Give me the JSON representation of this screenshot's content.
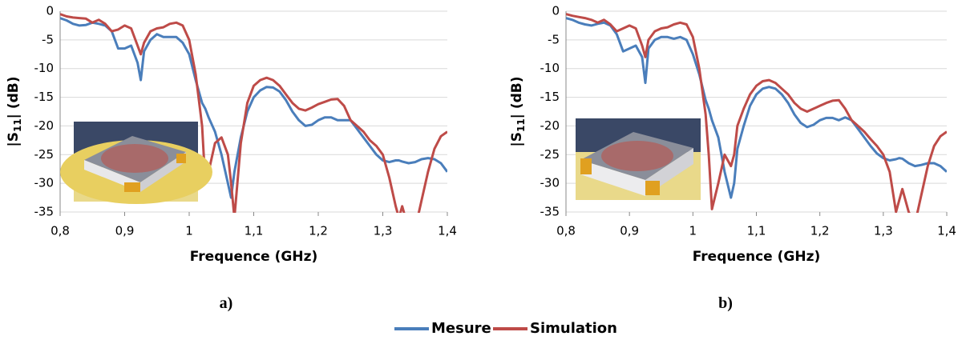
{
  "chart_data": [
    {
      "type": "line",
      "caption": "a)",
      "x_label": "Frequence (GHz)",
      "y_label": {
        "prefix": "|S",
        "subscript": "11",
        "suffix": "| (dB)"
      },
      "xlim": [
        0.8,
        1.4
      ],
      "ylim": [
        -35,
        0
      ],
      "xticks": [
        {
          "value": 0.8,
          "label": "0,8"
        },
        {
          "value": 0.9,
          "label": "0,9"
        },
        1,
        {
          "value": 1.1,
          "label": "1,1"
        },
        {
          "value": 1.2,
          "label": "1,2"
        },
        {
          "value": 1.3,
          "label": "1,3"
        },
        {
          "value": 1.4,
          "label": "1,4"
        }
      ],
      "yticks": [
        0,
        -5,
        -10,
        -15,
        -20,
        -25,
        -30,
        -35
      ],
      "grid": true,
      "x": [
        0.8,
        0.81,
        0.82,
        0.83,
        0.84,
        0.85,
        0.86,
        0.87,
        0.88,
        0.89,
        0.9,
        0.91,
        0.92,
        0.925,
        0.93,
        0.94,
        0.95,
        0.96,
        0.97,
        0.98,
        0.99,
        1,
        1.01,
        1.02,
        1.025,
        1.03,
        1.04,
        1.05,
        1.06,
        1.065,
        1.07,
        1.08,
        1.09,
        1.1,
        1.11,
        1.12,
        1.13,
        1.14,
        1.15,
        1.16,
        1.17,
        1.18,
        1.19,
        1.2,
        1.21,
        1.22,
        1.23,
        1.24,
        1.25,
        1.26,
        1.27,
        1.28,
        1.29,
        1.3,
        1.31,
        1.32,
        1.325,
        1.33,
        1.34,
        1.35,
        1.36,
        1.37,
        1.38,
        1.39,
        1.4
      ],
      "series": [
        {
          "name": "Mesure",
          "color": "#4a7ebb",
          "values": [
            -1.2,
            -1.6,
            -2.2,
            -2.5,
            -2.4,
            -2,
            -2.2,
            -2.5,
            -3.5,
            -6.5,
            -6.5,
            -6,
            -9,
            -12,
            -7,
            -5,
            -4,
            -4.5,
            -4.5,
            -4.5,
            -5.5,
            -7.5,
            -12,
            -16,
            -17,
            -18.5,
            -21,
            -25,
            -30,
            -32.5,
            -28,
            -22,
            -17.5,
            -15,
            -13.8,
            -13.2,
            -13.3,
            -14,
            -15.5,
            -17.5,
            -19,
            -20,
            -19.8,
            -19,
            -18.5,
            -18.5,
            -19,
            -19,
            -19,
            -20.5,
            -22,
            -23.5,
            -25,
            -26,
            -26.3,
            -26,
            -26,
            -26.2,
            -26.5,
            -26.3,
            -25.8,
            -25.6,
            -25.8,
            -26.5,
            -28
          ]
        },
        {
          "name": "Simulation",
          "color": "#be4b48",
          "values": [
            -0.5,
            -0.9,
            -1.1,
            -1.2,
            -1.3,
            -2,
            -1.5,
            -2.2,
            -3.5,
            -3.2,
            -2.5,
            -3,
            -6,
            -7.5,
            -5.5,
            -3.5,
            -3,
            -2.8,
            -2.2,
            -2,
            -2.5,
            -5,
            -11,
            -20,
            -30,
            -28,
            -23,
            -22,
            -25,
            -30,
            -36,
            -23,
            -16,
            -13,
            -12,
            -11.6,
            -12,
            -13,
            -14.5,
            -16,
            -17,
            -17.3,
            -16.8,
            -16.2,
            -15.8,
            -15.4,
            -15.3,
            -16.5,
            -19,
            -20,
            -21,
            -22.5,
            -23.5,
            -25,
            -29,
            -34,
            -36,
            -34,
            -38,
            -38,
            -33,
            -28,
            -24,
            -21.8,
            -21
          ]
        }
      ]
    },
    {
      "type": "line",
      "caption": "b)",
      "x_label": "Frequence (GHz)",
      "y_label": {
        "prefix": "|S",
        "subscript": "11",
        "suffix": "| (dB)"
      },
      "xlim": [
        0.8,
        1.4
      ],
      "ylim": [
        -35,
        0
      ],
      "xticks": [
        {
          "value": 0.8,
          "label": "0,8"
        },
        {
          "value": 0.9,
          "label": "0,9"
        },
        1,
        {
          "value": 1.1,
          "label": "1,1"
        },
        {
          "value": 1.2,
          "label": "1,2"
        },
        {
          "value": 1.3,
          "label": "1,3"
        },
        {
          "value": 1.4,
          "label": "1,4"
        }
      ],
      "yticks": [
        0,
        -5,
        -10,
        -15,
        -20,
        -25,
        -30,
        -35
      ],
      "grid": true,
      "x": [
        0.8,
        0.81,
        0.82,
        0.83,
        0.84,
        0.85,
        0.86,
        0.87,
        0.88,
        0.89,
        0.9,
        0.91,
        0.92,
        0.925,
        0.93,
        0.94,
        0.95,
        0.96,
        0.97,
        0.98,
        0.99,
        1,
        1.01,
        1.02,
        1.025,
        1.03,
        1.04,
        1.05,
        1.06,
        1.065,
        1.07,
        1.08,
        1.09,
        1.1,
        1.11,
        1.12,
        1.13,
        1.14,
        1.15,
        1.16,
        1.17,
        1.18,
        1.19,
        1.2,
        1.21,
        1.22,
        1.23,
        1.24,
        1.25,
        1.26,
        1.27,
        1.28,
        1.29,
        1.3,
        1.31,
        1.32,
        1.325,
        1.33,
        1.34,
        1.35,
        1.36,
        1.37,
        1.38,
        1.39,
        1.4
      ],
      "series": [
        {
          "name": "Mesure",
          "color": "#4a7ebb",
          "values": [
            -1.2,
            -1.5,
            -2,
            -2.3,
            -2.5,
            -2.2,
            -2,
            -2.5,
            -4,
            -7,
            -6.5,
            -6,
            -8,
            -12.5,
            -6.5,
            -5,
            -4.5,
            -4.5,
            -4.8,
            -4.5,
            -5,
            -7.5,
            -11,
            -15.5,
            -17,
            -19,
            -22,
            -28,
            -32.5,
            -30,
            -24,
            -20,
            -16.5,
            -14.5,
            -13.5,
            -13.2,
            -13.5,
            -14.5,
            -16,
            -18,
            -19.5,
            -20.2,
            -19.8,
            -19,
            -18.6,
            -18.6,
            -19,
            -18.5,
            -19,
            -20.5,
            -22,
            -23.5,
            -24.8,
            -25.6,
            -26,
            -25.8,
            -25.6,
            -25.7,
            -26.5,
            -27,
            -26.8,
            -26.5,
            -26.5,
            -27,
            -28
          ]
        },
        {
          "name": "Simulation",
          "color": "#be4b48",
          "values": [
            -0.5,
            -0.8,
            -1,
            -1.2,
            -1.5,
            -2,
            -1.5,
            -2.3,
            -3.5,
            -3,
            -2.5,
            -3,
            -6,
            -8,
            -5,
            -3.5,
            -3,
            -2.8,
            -2.3,
            -2,
            -2.3,
            -4.5,
            -10,
            -18,
            -25,
            -34.5,
            -30,
            -25,
            -27,
            -25,
            -20,
            -17,
            -14.5,
            -13,
            -12.2,
            -12,
            -12.5,
            -13.5,
            -14.5,
            -16,
            -17,
            -17.5,
            -17,
            -16.5,
            -16,
            -15.6,
            -15.5,
            -17,
            -19,
            -20,
            -21,
            -22.3,
            -23.5,
            -25,
            -28,
            -35,
            -33,
            -31,
            -35,
            -37,
            -32,
            -27,
            -23.5,
            -21.8,
            -21
          ]
        }
      ]
    }
  ]
}
